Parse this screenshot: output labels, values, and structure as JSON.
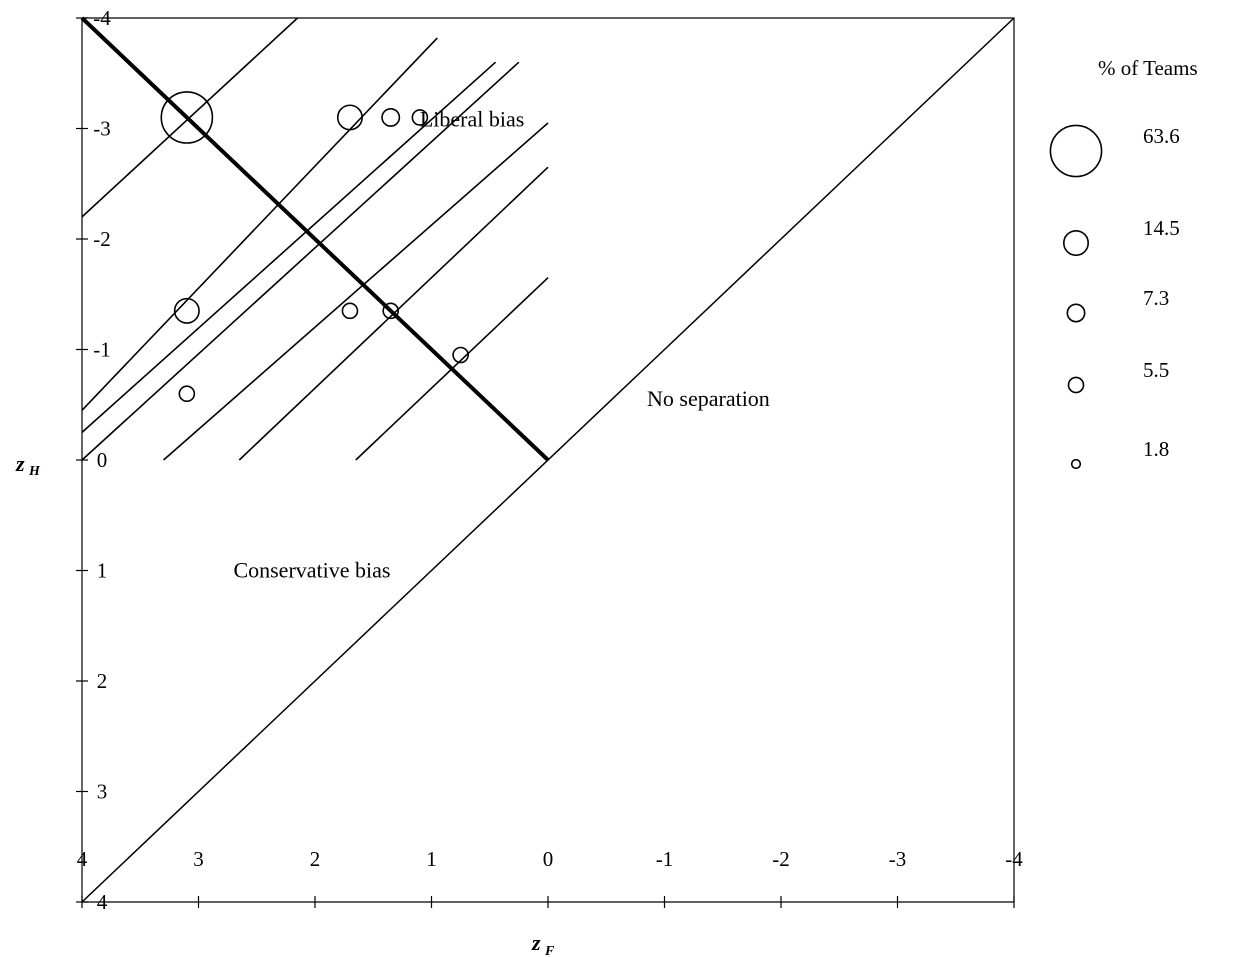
{
  "chart_data": {
    "type": "scatter",
    "title": "",
    "xlabel": "z",
    "xlabel_sub": "F",
    "ylabel": "z",
    "ylabel_sub": "H",
    "xlim": [
      4,
      -4
    ],
    "ylim": [
      4,
      -4
    ],
    "x_ticks": [
      "4",
      "3",
      "2",
      "1",
      "0",
      "-1",
      "-2",
      "-3",
      "-4"
    ],
    "y_ticks": [
      "-4",
      "-3",
      "-2",
      "-1",
      "0",
      "1",
      "2",
      "3",
      "4"
    ],
    "x_tick_values": [
      4,
      3,
      2,
      1,
      0,
      -1,
      -2,
      -3,
      -4
    ],
    "y_tick_values": [
      -4,
      -3,
      -2,
      -1,
      0,
      1,
      2,
      3,
      4
    ],
    "grid": false,
    "annotations": [
      {
        "text": "Liberal bias",
        "x": 1.1,
        "y": -3.08
      },
      {
        "text": "No separation",
        "x": -0.85,
        "y": -0.55
      },
      {
        "text": "Conservative bias",
        "x": 2.7,
        "y": 1.0
      }
    ],
    "reference_lines": [
      {
        "name": "no-separation-diagonal",
        "from": [
          4,
          4
        ],
        "to": [
          -4,
          -4
        ],
        "weight": "thin"
      },
      {
        "name": "zero-bias-line",
        "from": [
          4,
          -4
        ],
        "to": [
          0,
          0
        ],
        "weight": "bold"
      }
    ],
    "iso_lines": [
      {
        "from": [
          4,
          -2.2
        ],
        "to": [
          2.15,
          -4
        ]
      },
      {
        "from": [
          4,
          -0.45
        ],
        "to": [
          0.95,
          -3.82
        ]
      },
      {
        "from": [
          4,
          -0.25
        ],
        "to": [
          0.45,
          -3.6
        ]
      },
      {
        "from": [
          4,
          0
        ],
        "to": [
          0.25,
          -3.6
        ]
      },
      {
        "from": [
          3.3,
          0
        ],
        "to": [
          0,
          -3.05
        ]
      },
      {
        "from": [
          2.65,
          0
        ],
        "to": [
          0,
          -2.65
        ]
      },
      {
        "from": [
          1.65,
          0
        ],
        "to": [
          0,
          -1.65
        ]
      }
    ],
    "points": [
      {
        "x": 3.1,
        "y": -3.1,
        "pct": 63.6
      },
      {
        "x": 1.7,
        "y": -3.1,
        "pct": 14.5
      },
      {
        "x": 1.35,
        "y": -3.1,
        "pct": 7.3
      },
      {
        "x": 1.1,
        "y": -3.1,
        "pct": 5.5
      },
      {
        "x": 3.1,
        "y": -1.35,
        "pct": 14.5
      },
      {
        "x": 1.7,
        "y": -1.35,
        "pct": 5.5
      },
      {
        "x": 1.35,
        "y": -1.35,
        "pct": 5.5
      },
      {
        "x": 0.75,
        "y": -0.95,
        "pct": 5.5
      },
      {
        "x": 3.1,
        "y": -0.6,
        "pct": 5.5
      }
    ],
    "legend": {
      "title": "% of Teams",
      "placement": "right",
      "entries": [
        {
          "label": "63.6",
          "pct": 63.6
        },
        {
          "label": "14.5",
          "pct": 14.5
        },
        {
          "label": "7.3",
          "pct": 7.3
        },
        {
          "label": "5.5",
          "pct": 5.5
        },
        {
          "label": "1.8",
          "pct": 1.8
        }
      ]
    }
  }
}
